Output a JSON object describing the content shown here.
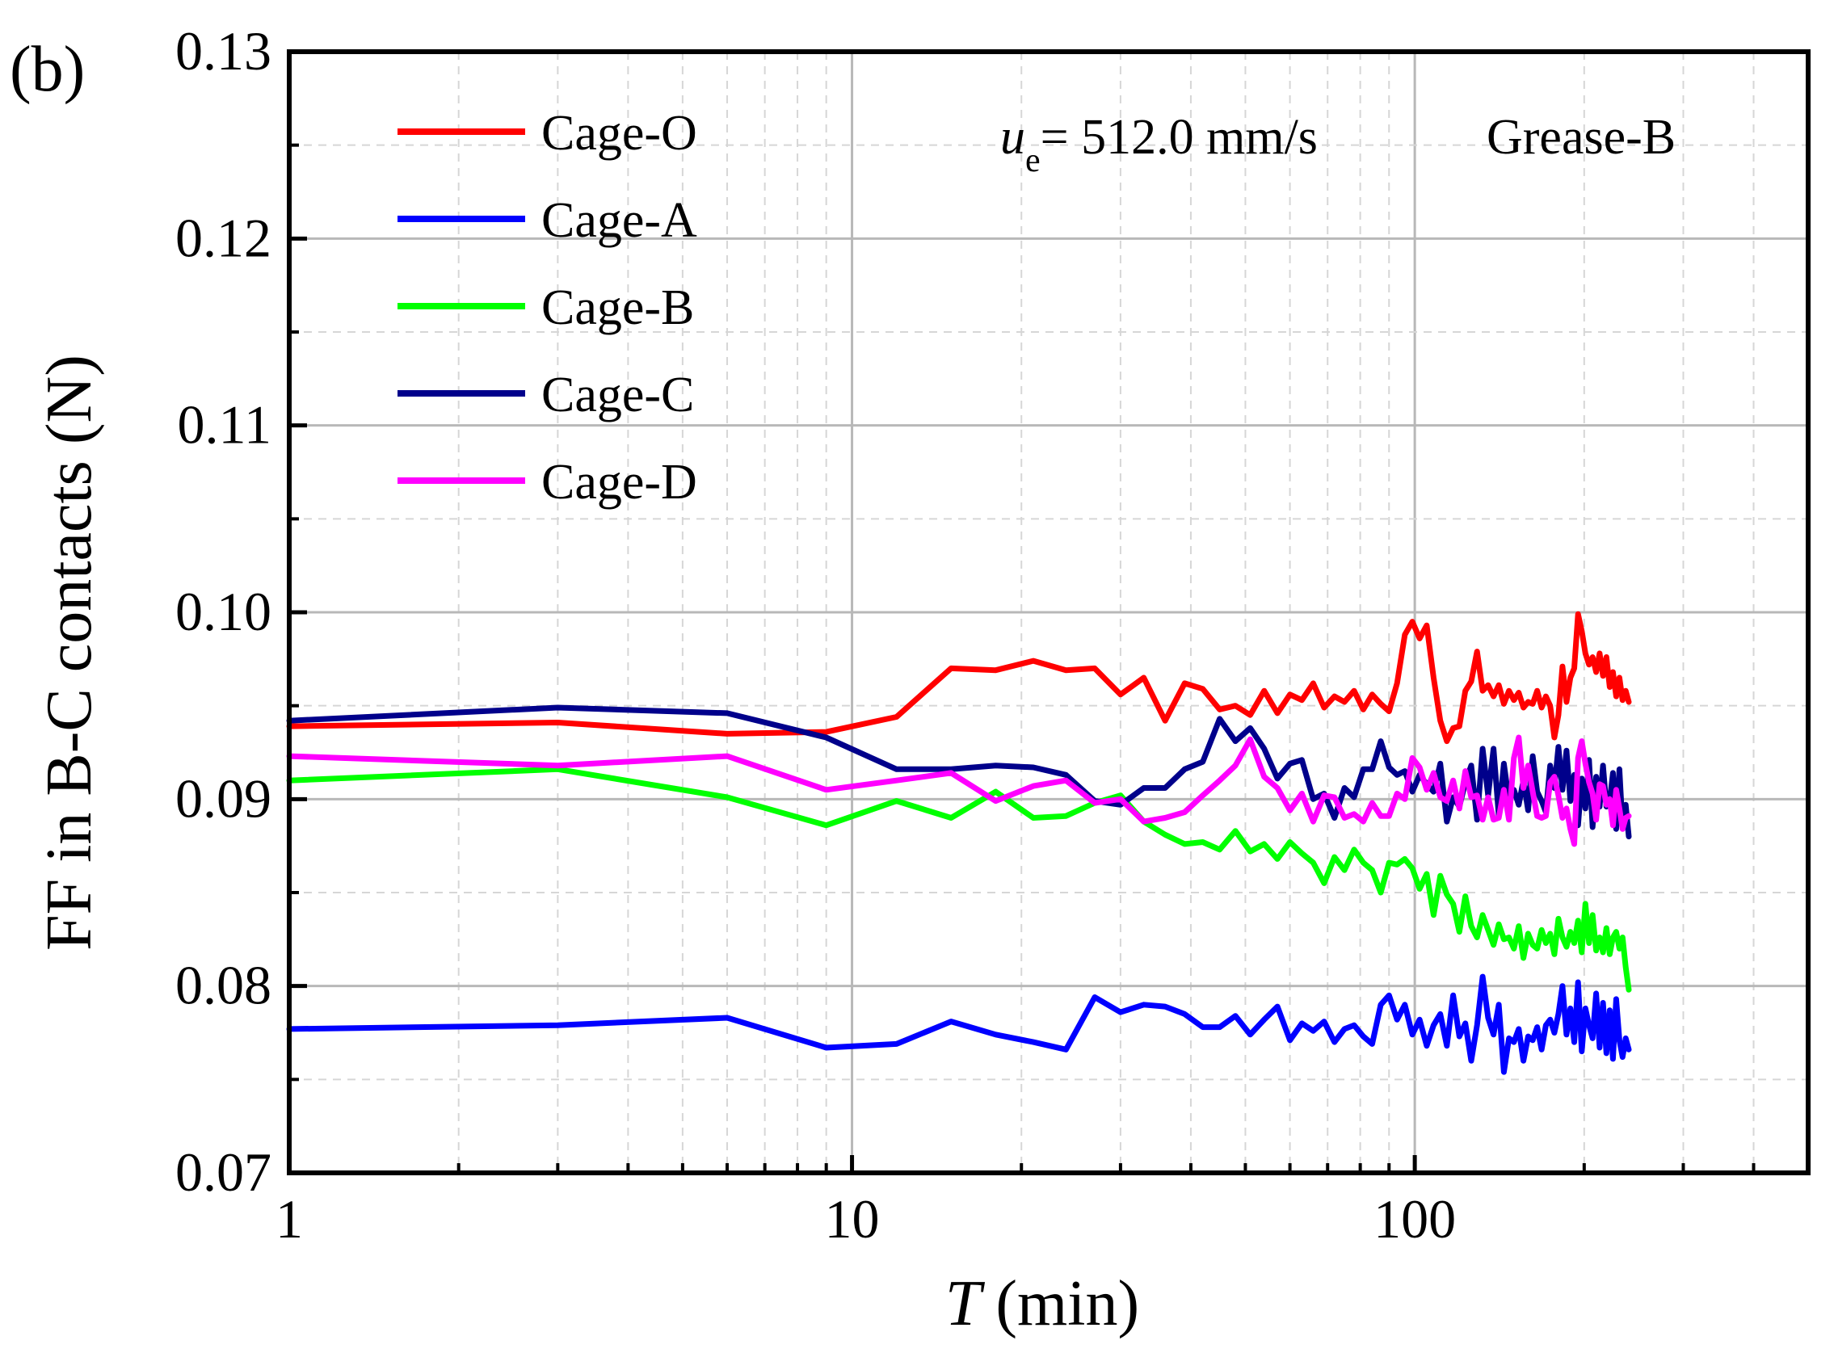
{
  "panel_label": "(b)",
  "chart_data": {
    "type": "line",
    "title": "",
    "xlabel_italic": "T",
    "xlabel_unit": "(min)",
    "ylabel": "FF in B-C contacts (N)",
    "xscale": "log",
    "xlim": [
      1,
      500
    ],
    "ylim": [
      0.07,
      0.13
    ],
    "x_ticks": [
      1,
      10,
      100
    ],
    "x_tick_labels": [
      "1",
      "10",
      "100"
    ],
    "y_ticks": [
      0.07,
      0.08,
      0.09,
      0.1,
      0.11,
      0.12,
      0.13
    ],
    "y_tick_labels": [
      "0.07",
      "0.08",
      "0.09",
      "0.10",
      "0.11",
      "0.12",
      "0.13"
    ],
    "grid": true,
    "legend_position": "top-left",
    "annotation": {
      "symbol": "u",
      "subscript": "e",
      "text": "= 512.0 mm/s",
      "grease": "Grease-B"
    },
    "series": [
      {
        "name": "Cage-O",
        "color": "#ff0000",
        "x": [
          1,
          3,
          6,
          9,
          12,
          15,
          18,
          21,
          24,
          27,
          30,
          33,
          36,
          39,
          42,
          45,
          48,
          51,
          54,
          57,
          60,
          63,
          66,
          69,
          72,
          75,
          78,
          81,
          84,
          87,
          90,
          93,
          96,
          99,
          102,
          105,
          108,
          111,
          114,
          117,
          120,
          123,
          126,
          129,
          132,
          135,
          138,
          141,
          144,
          147,
          150,
          153,
          156,
          159,
          162,
          165,
          168,
          171,
          174,
          177,
          180,
          183,
          186,
          189,
          192,
          195,
          198,
          201,
          204,
          207,
          210,
          213,
          216,
          219,
          222,
          225,
          228,
          231,
          234,
          237,
          240
        ],
        "y": [
          0.0939,
          0.0941,
          0.0935,
          0.0936,
          0.0944,
          0.097,
          0.0969,
          0.0974,
          0.0969,
          0.097,
          0.0956,
          0.0965,
          0.0942,
          0.0962,
          0.0959,
          0.0948,
          0.095,
          0.0945,
          0.0958,
          0.0946,
          0.0956,
          0.0953,
          0.0962,
          0.0949,
          0.0955,
          0.0952,
          0.0958,
          0.0948,
          0.0956,
          0.0951,
          0.0947,
          0.0962,
          0.0988,
          0.0995,
          0.0986,
          0.0993,
          0.0965,
          0.0942,
          0.0931,
          0.0938,
          0.0939,
          0.0958,
          0.0963,
          0.0979,
          0.0958,
          0.0961,
          0.0955,
          0.0961,
          0.0951,
          0.0958,
          0.0953,
          0.0957,
          0.0949,
          0.0952,
          0.0951,
          0.0958,
          0.0949,
          0.0955,
          0.095,
          0.0933,
          0.0945,
          0.0971,
          0.0952,
          0.0965,
          0.097,
          0.0999,
          0.099,
          0.0978,
          0.0972,
          0.0976,
          0.0968,
          0.0978,
          0.0966,
          0.0976,
          0.096,
          0.0968,
          0.0955,
          0.0965,
          0.0953,
          0.0958,
          0.0952
        ]
      },
      {
        "name": "Cage-A",
        "color": "#0000ff",
        "x": [
          1,
          3,
          6,
          9,
          12,
          15,
          18,
          21,
          24,
          27,
          30,
          33,
          36,
          39,
          42,
          45,
          48,
          51,
          54,
          57,
          60,
          63,
          66,
          69,
          72,
          75,
          78,
          81,
          84,
          87,
          90,
          93,
          96,
          99,
          102,
          105,
          108,
          111,
          114,
          117,
          120,
          123,
          126,
          129,
          132,
          135,
          138,
          141,
          144,
          147,
          150,
          153,
          156,
          159,
          162,
          165,
          168,
          171,
          174,
          177,
          180,
          183,
          186,
          189,
          192,
          195,
          198,
          201,
          204,
          207,
          210,
          213,
          216,
          219,
          222,
          225,
          228,
          231,
          234,
          237,
          240
        ],
        "y": [
          0.0777,
          0.0779,
          0.0783,
          0.0767,
          0.0769,
          0.0781,
          0.0774,
          0.077,
          0.0766,
          0.0794,
          0.0786,
          0.079,
          0.0789,
          0.0785,
          0.0778,
          0.0778,
          0.0784,
          0.0774,
          0.0782,
          0.0789,
          0.0771,
          0.078,
          0.0776,
          0.0781,
          0.077,
          0.0777,
          0.0779,
          0.0773,
          0.0769,
          0.079,
          0.0795,
          0.0782,
          0.079,
          0.0774,
          0.0782,
          0.0768,
          0.0779,
          0.0785,
          0.0768,
          0.0795,
          0.0773,
          0.078,
          0.076,
          0.0779,
          0.0805,
          0.0783,
          0.0774,
          0.079,
          0.0754,
          0.0772,
          0.077,
          0.0777,
          0.076,
          0.0773,
          0.0771,
          0.0778,
          0.0766,
          0.0779,
          0.0782,
          0.0775,
          0.0785,
          0.08,
          0.0774,
          0.0788,
          0.077,
          0.0802,
          0.0765,
          0.0788,
          0.0779,
          0.0772,
          0.0796,
          0.0767,
          0.0791,
          0.0764,
          0.0787,
          0.0761,
          0.0793,
          0.0771,
          0.0762,
          0.0772,
          0.0766
        ]
      },
      {
        "name": "Cage-B",
        "color": "#00ff00",
        "x": [
          1,
          3,
          6,
          9,
          12,
          15,
          18,
          21,
          24,
          27,
          30,
          33,
          36,
          39,
          42,
          45,
          48,
          51,
          54,
          57,
          60,
          63,
          66,
          69,
          72,
          75,
          78,
          81,
          84,
          87,
          90,
          93,
          96,
          99,
          102,
          105,
          108,
          111,
          114,
          117,
          120,
          123,
          126,
          129,
          132,
          135,
          138,
          141,
          144,
          147,
          150,
          153,
          156,
          159,
          162,
          165,
          168,
          171,
          174,
          177,
          180,
          183,
          186,
          189,
          192,
          195,
          198,
          201,
          204,
          207,
          210,
          213,
          216,
          219,
          222,
          225,
          228,
          231,
          234,
          237,
          240
        ],
        "y": [
          0.091,
          0.0916,
          0.0901,
          0.0886,
          0.0899,
          0.089,
          0.0904,
          0.089,
          0.0891,
          0.0898,
          0.0902,
          0.0888,
          0.0881,
          0.0876,
          0.0877,
          0.0873,
          0.0883,
          0.0872,
          0.0876,
          0.0868,
          0.0877,
          0.0871,
          0.0866,
          0.0855,
          0.0869,
          0.0862,
          0.0873,
          0.0866,
          0.0862,
          0.085,
          0.0866,
          0.0865,
          0.0868,
          0.0863,
          0.0852,
          0.086,
          0.0838,
          0.0859,
          0.0849,
          0.0844,
          0.0829,
          0.0848,
          0.0832,
          0.0826,
          0.0838,
          0.083,
          0.0822,
          0.0833,
          0.0825,
          0.0826,
          0.082,
          0.0832,
          0.0815,
          0.0828,
          0.0822,
          0.082,
          0.083,
          0.0823,
          0.0828,
          0.0817,
          0.0836,
          0.0826,
          0.0821,
          0.0829,
          0.0823,
          0.0835,
          0.0818,
          0.0844,
          0.0823,
          0.0838,
          0.0819,
          0.0826,
          0.0818,
          0.0831,
          0.0817,
          0.0826,
          0.0829,
          0.082,
          0.0826,
          0.081,
          0.0798
        ]
      },
      {
        "name": "Cage-C",
        "color": "#00008b",
        "x": [
          1,
          3,
          6,
          9,
          12,
          15,
          18,
          21,
          24,
          27,
          30,
          33,
          36,
          39,
          42,
          45,
          48,
          51,
          54,
          57,
          60,
          63,
          66,
          69,
          72,
          75,
          78,
          81,
          84,
          87,
          90,
          93,
          96,
          99,
          102,
          105,
          108,
          111,
          114,
          117,
          120,
          123,
          126,
          129,
          132,
          135,
          138,
          141,
          144,
          147,
          150,
          153,
          156,
          159,
          162,
          165,
          168,
          171,
          174,
          177,
          180,
          183,
          186,
          189,
          192,
          195,
          198,
          201,
          204,
          207,
          210,
          213,
          216,
          219,
          222,
          225,
          228,
          231,
          234,
          237,
          240
        ],
        "y": [
          0.0942,
          0.0949,
          0.0946,
          0.0933,
          0.0916,
          0.0916,
          0.0918,
          0.0917,
          0.0913,
          0.0899,
          0.0897,
          0.0906,
          0.0906,
          0.0916,
          0.092,
          0.0943,
          0.0931,
          0.0938,
          0.0927,
          0.0911,
          0.0919,
          0.0921,
          0.09,
          0.0903,
          0.089,
          0.0906,
          0.0901,
          0.0916,
          0.0916,
          0.0931,
          0.0917,
          0.0913,
          0.0915,
          0.0904,
          0.0913,
          0.0908,
          0.0904,
          0.0919,
          0.0888,
          0.0901,
          0.0896,
          0.0909,
          0.0918,
          0.0889,
          0.0927,
          0.0902,
          0.0927,
          0.0891,
          0.0919,
          0.0899,
          0.0905,
          0.0897,
          0.091,
          0.0894,
          0.0923,
          0.0904,
          0.0899,
          0.0893,
          0.0918,
          0.0906,
          0.0928,
          0.0905,
          0.0926,
          0.0899,
          0.0913,
          0.0886,
          0.0911,
          0.0895,
          0.0921,
          0.0885,
          0.0912,
          0.0896,
          0.0918,
          0.0896,
          0.0899,
          0.0914,
          0.0884,
          0.0916,
          0.0885,
          0.0897,
          0.088
        ]
      },
      {
        "name": "Cage-D",
        "color": "#ff00ff",
        "x": [
          1,
          3,
          6,
          9,
          12,
          15,
          18,
          21,
          24,
          27,
          30,
          33,
          36,
          39,
          42,
          45,
          48,
          51,
          54,
          57,
          60,
          63,
          66,
          69,
          72,
          75,
          78,
          81,
          84,
          87,
          90,
          93,
          96,
          99,
          102,
          105,
          108,
          111,
          114,
          117,
          120,
          123,
          126,
          129,
          132,
          135,
          138,
          141,
          144,
          147,
          150,
          153,
          156,
          159,
          162,
          165,
          168,
          171,
          174,
          177,
          180,
          183,
          186,
          189,
          192,
          195,
          198,
          201,
          204,
          207,
          210,
          213,
          216,
          219,
          222,
          225,
          228,
          231,
          234,
          237,
          240
        ],
        "y": [
          0.0923,
          0.0918,
          0.0923,
          0.0905,
          0.091,
          0.0914,
          0.0899,
          0.0907,
          0.091,
          0.0898,
          0.09,
          0.0888,
          0.089,
          0.0893,
          0.0902,
          0.091,
          0.0918,
          0.0932,
          0.0912,
          0.0906,
          0.0894,
          0.0903,
          0.0888,
          0.0902,
          0.0901,
          0.089,
          0.0892,
          0.0888,
          0.0898,
          0.0891,
          0.0891,
          0.0903,
          0.09,
          0.0922,
          0.0917,
          0.0905,
          0.0914,
          0.0901,
          0.0899,
          0.091,
          0.0895,
          0.0915,
          0.0901,
          0.0902,
          0.0889,
          0.0901,
          0.0889,
          0.089,
          0.0905,
          0.0889,
          0.0922,
          0.0933,
          0.0906,
          0.0918,
          0.0904,
          0.0891,
          0.089,
          0.0891,
          0.0909,
          0.0912,
          0.0902,
          0.089,
          0.0895,
          0.0884,
          0.0876,
          0.0922,
          0.0931,
          0.0919,
          0.0909,
          0.0903,
          0.0889,
          0.0908,
          0.0907,
          0.0897,
          0.09,
          0.0886,
          0.0905,
          0.0895,
          0.0884,
          0.089,
          0.0891
        ]
      }
    ]
  }
}
